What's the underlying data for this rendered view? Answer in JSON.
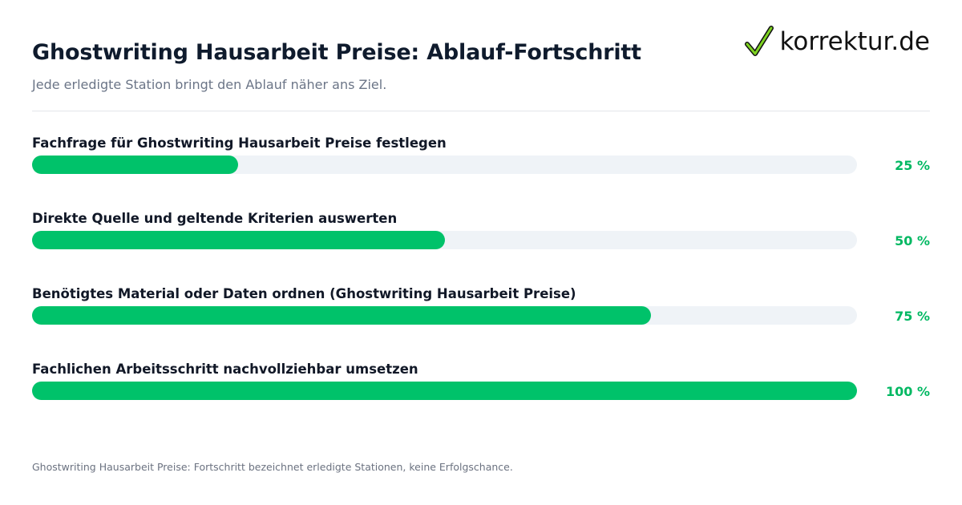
{
  "header": {
    "title": "Ghostwriting Hausarbeit Preise: Ablauf-Fortschritt",
    "subtitle": "Jede erledigte Station bringt den Ablauf näher ans Ziel.",
    "logo_text": "korrektur.de",
    "logo_icon": "checkmark-icon"
  },
  "colors": {
    "bar_fill": "#00c26a",
    "bar_track": "#eff3f7",
    "percent_text": "#00b862",
    "title_text": "#0f1b2d"
  },
  "chart_data": {
    "type": "bar",
    "orientation": "horizontal",
    "categories": [
      "Fachfrage für Ghostwriting Hausarbeit Preise festlegen",
      "Direkte Quelle und geltende Kriterien auswerten",
      "Benötigtes Material oder Daten ordnen (Ghostwriting Hausarbeit Preise)",
      "Fachlichen Arbeitsschritt nachvollziehbar umsetzen"
    ],
    "values": [
      25,
      50,
      75,
      100
    ],
    "value_labels": [
      "25 %",
      "50 %",
      "75 %",
      "100 %"
    ],
    "xlim": [
      0,
      100
    ],
    "grid": false,
    "legend": "none"
  },
  "footnote": "Ghostwriting Hausarbeit Preise: Fortschritt bezeichnet erledigte Stationen, keine Erfolgschance."
}
